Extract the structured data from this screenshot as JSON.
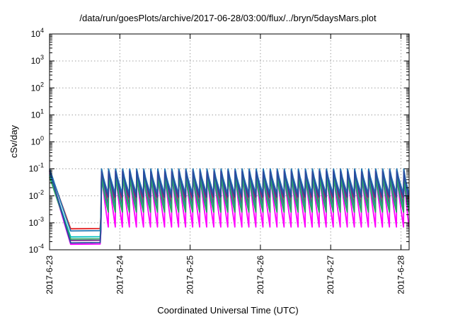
{
  "chart_data": {
    "type": "line",
    "title": "/data/run/goesPlots/archive/2017-06-28/03:00/flux/../bryn/5daysMars.plot",
    "xlabel": "Coordinated Universal Time (UTC)",
    "ylabel": "cSv/day",
    "yscale": "log",
    "ylim": [
      0.0001,
      10000
    ],
    "xlim": [
      "2017-06-23 00:00",
      "2017-06-28 03:00"
    ],
    "grid": true,
    "legend": "none",
    "x_ticks": [
      "2017-6-23",
      "2017-6-24",
      "2017-6-25",
      "2017-6-26",
      "2017-6-27",
      "2017-6-28"
    ],
    "y_ticks": [
      {
        "base": "10",
        "exp": "-4",
        "value": 0.0001
      },
      {
        "base": "10",
        "exp": "-3",
        "value": 0.001
      },
      {
        "base": "10",
        "exp": "-2",
        "value": 0.01
      },
      {
        "base": "10",
        "exp": "-1",
        "value": 0.1
      },
      {
        "base": "10",
        "exp": "0",
        "value": 1
      },
      {
        "base": "10",
        "exp": "1",
        "value": 10
      },
      {
        "base": "10",
        "exp": "2",
        "value": 100
      },
      {
        "base": "10",
        "exp": "3",
        "value": 1000
      },
      {
        "base": "10",
        "exp": "4",
        "value": 10000
      }
    ],
    "series_model": {
      "initial_decay": {
        "start_day": 0.0,
        "end_day": 0.3
      },
      "low_plateau": {
        "start_day": 0.3,
        "end_day": 0.72
      },
      "sawtooth_start_day": 0.74,
      "sawtooth_period_days": 0.1,
      "end_day": 5.125
    },
    "series": [
      {
        "color": "#e41a1c",
        "peak": 0.095,
        "trough": 0.0075,
        "plateau": 0.0006,
        "start": 0.09
      },
      {
        "color": "#7b2d8e",
        "peak": 0.09,
        "trough": 0.0045,
        "plateau": 0.00022,
        "start": 0.08
      },
      {
        "color": "#ff00ff",
        "peak": 0.085,
        "trough": 0.0007,
        "plateau": 0.00016,
        "start": 0.07
      },
      {
        "color": "#1f78b4",
        "peak": 0.1,
        "trough": 0.012,
        "plateau": 0.0005,
        "start": 0.1
      },
      {
        "color": "#00bfbf",
        "peak": 0.06,
        "trough": 0.003,
        "plateau": 0.0003,
        "start": 0.06
      },
      {
        "color": "#2ca25f",
        "peak": 0.05,
        "trough": 0.0025,
        "plateau": 0.00025,
        "start": 0.05
      },
      {
        "color": "#2b4a9e",
        "peak": 0.08,
        "trough": 0.009,
        "plateau": 0.00018,
        "start": 0.085
      }
    ]
  }
}
